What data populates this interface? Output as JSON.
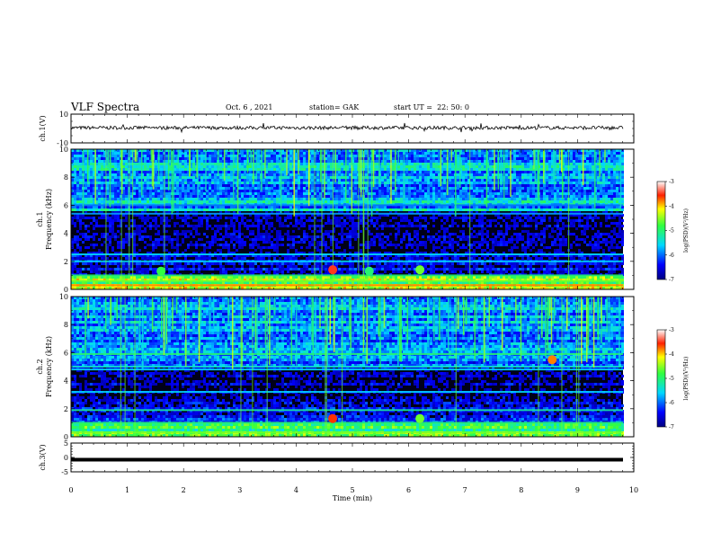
{
  "header": {
    "title": "VLF Spectra",
    "date": "Oct. 6 , 2021",
    "station": "station= GAK",
    "start": "start UT =  22: 50: 0"
  },
  "chart_data": [
    {
      "type": "line",
      "name": "ch1-waveform",
      "ylabel": "ch.1(V)",
      "yticks": [
        "10",
        "-10"
      ],
      "ylim": [
        -10,
        10
      ],
      "xlim": [
        0,
        10
      ],
      "approx_level": 0.5,
      "noise_amplitude": 1.2
    },
    {
      "type": "heatmap",
      "name": "ch1-spectrogram",
      "ylabel": "ch.1 Frequency (kHz)",
      "yticks": [
        "0",
        "2",
        "4",
        "6",
        "8",
        "10"
      ],
      "ylim": [
        0,
        10
      ],
      "xlim": [
        0,
        9.83
      ],
      "colorbar": {
        "label": "log(PSD)(V²/Hz)",
        "ticks": [
          "-3",
          "-4",
          "-5",
          "-6",
          "-7"
        ],
        "range": [
          -7,
          -3
        ]
      },
      "bands_khz": [
        {
          "f": 0.3,
          "level": -3.8
        },
        {
          "f": 0.6,
          "level": -4.6
        },
        {
          "f": 1.0,
          "level": -5.0
        },
        {
          "f": 2.0,
          "level": -5.6
        },
        {
          "f": 2.5,
          "level": -5.6
        },
        {
          "f": 5.4,
          "level": -5.8
        },
        {
          "f": 6.0,
          "level": -6.0
        }
      ],
      "bursts": [
        {
          "t": 4.65,
          "f": 1.4,
          "level": -3.5
        },
        {
          "t": 6.2,
          "f": 1.4,
          "level": -4.6
        },
        {
          "t": 1.6,
          "f": 1.3,
          "level": -4.8
        },
        {
          "t": 5.3,
          "f": 1.3,
          "level": -5.0
        }
      ]
    },
    {
      "type": "heatmap",
      "name": "ch2-spectrogram",
      "ylabel": "ch.2 Frequency (kHz)",
      "yticks": [
        "0",
        "2",
        "4",
        "6",
        "8",
        "10"
      ],
      "ylim": [
        0,
        10
      ],
      "xlim": [
        0,
        9.83
      ],
      "colorbar": {
        "label": "log(PSD)(V²/Hz)",
        "ticks": [
          "-3",
          "-4",
          "-5",
          "-6",
          "-7"
        ],
        "range": [
          -7,
          -3
        ]
      },
      "bands_khz": [
        {
          "f": 0.3,
          "level": -4.6
        },
        {
          "f": 1.0,
          "level": -5.0
        },
        {
          "f": 1.9,
          "level": -5.2
        },
        {
          "f": 3.2,
          "level": -5.6
        },
        {
          "f": 4.8,
          "level": -5.6
        },
        {
          "f": 5.0,
          "level": -5.4
        },
        {
          "f": 5.9,
          "level": -5.0
        }
      ],
      "bursts": [
        {
          "t": 4.65,
          "f": 1.3,
          "level": -3.6
        },
        {
          "t": 6.2,
          "f": 1.3,
          "level": -4.6
        },
        {
          "t": 8.55,
          "f": 5.5,
          "level": -3.8
        }
      ]
    },
    {
      "type": "line",
      "name": "ch3-waveform",
      "ylabel": "ch.3(V)",
      "yticks": [
        "5",
        "0",
        "-5"
      ],
      "ylim": [
        -5,
        5
      ],
      "xlim": [
        0,
        9.83
      ],
      "xlabel": "Time (min)",
      "xticks": [
        "0",
        "1",
        "2",
        "3",
        "4",
        "5",
        "6",
        "7",
        "8",
        "9",
        "10"
      ],
      "approx_level": 0.0
    }
  ]
}
